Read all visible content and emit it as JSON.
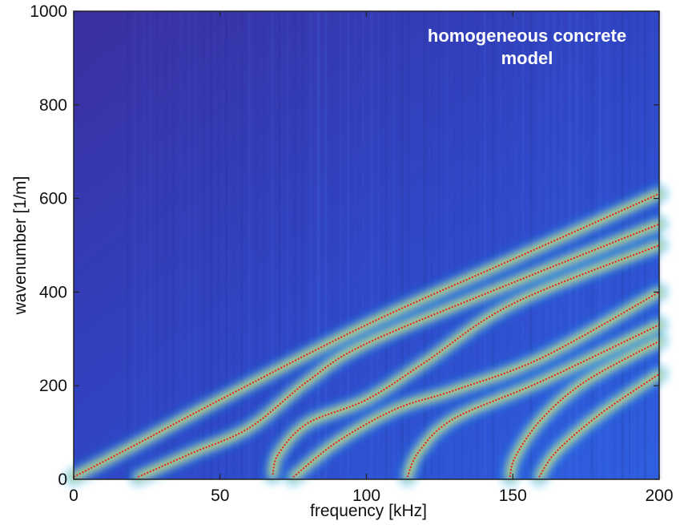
{
  "chart_data": {
    "type": "heatmap",
    "xlabel": "frequency [kHz]",
    "ylabel": "wavenumber [1/m]",
    "xlim": [
      0,
      200
    ],
    "ylim": [
      0,
      1000
    ],
    "xticks": [
      0,
      50,
      100,
      150,
      200
    ],
    "yticks": [
      0,
      200,
      400,
      600,
      800,
      1000
    ],
    "annotation": [
      "homogeneous concrete",
      "model"
    ],
    "colormap": [
      "#3a2fa0",
      "#2f5fe0",
      "#18a8e8",
      "#3cd0a0",
      "#b8e040",
      "#f8f020"
    ],
    "curve_color": "#e02020",
    "grid": false,
    "series": [
      {
        "points": [
          [
            0,
            5
          ],
          [
            20,
            70
          ],
          [
            50,
            170
          ],
          [
            100,
            330
          ],
          [
            150,
            470
          ],
          [
            200,
            610
          ]
        ]
      },
      {
        "points": [
          [
            22,
            5
          ],
          [
            40,
            55
          ],
          [
            60,
            110
          ],
          [
            80,
            210
          ],
          [
            100,
            290
          ],
          [
            150,
            420
          ],
          [
            200,
            545
          ]
        ]
      },
      {
        "points": [
          [
            68,
            10
          ],
          [
            70,
            55
          ],
          [
            80,
            120
          ],
          [
            100,
            170
          ],
          [
            120,
            250
          ],
          [
            150,
            375
          ],
          [
            200,
            500
          ]
        ]
      },
      {
        "points": [
          [
            75,
            5
          ],
          [
            90,
            80
          ],
          [
            110,
            150
          ],
          [
            130,
            190
          ],
          [
            160,
            260
          ],
          [
            200,
            400
          ]
        ]
      },
      {
        "points": [
          [
            114,
            5
          ],
          [
            118,
            60
          ],
          [
            130,
            130
          ],
          [
            160,
            210
          ],
          [
            200,
            330
          ]
        ]
      },
      {
        "points": [
          [
            149,
            5
          ],
          [
            151,
            50
          ],
          [
            160,
            130
          ],
          [
            175,
            210
          ],
          [
            200,
            295
          ]
        ]
      },
      {
        "points": [
          [
            159,
            5
          ],
          [
            165,
            60
          ],
          [
            180,
            140
          ],
          [
            200,
            225
          ]
        ]
      }
    ]
  }
}
